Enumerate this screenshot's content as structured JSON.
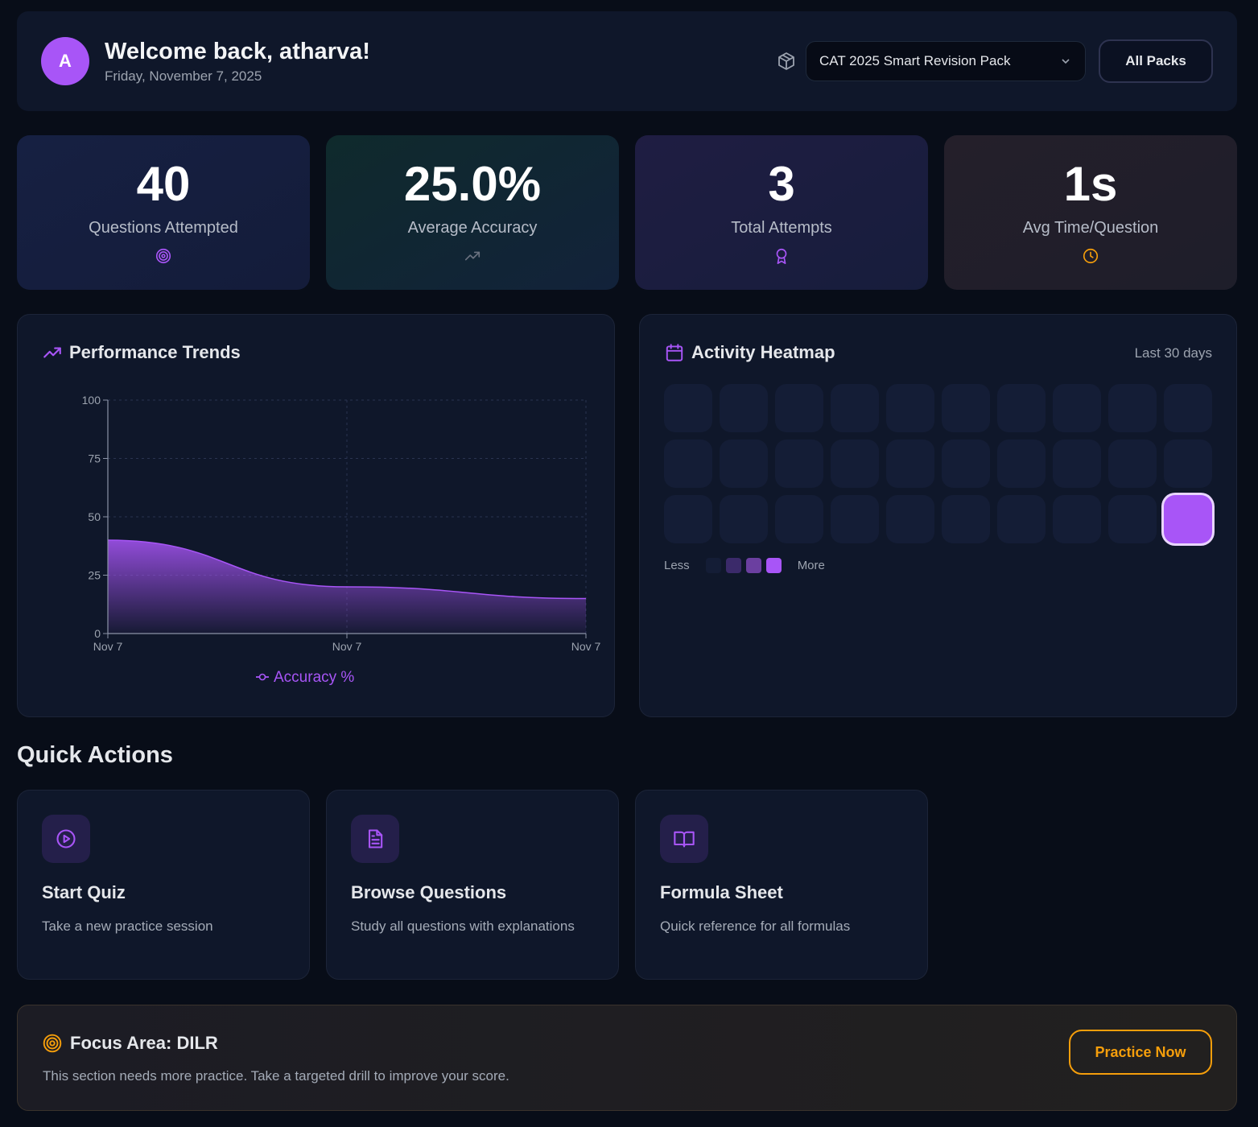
{
  "header": {
    "avatar_initial": "A",
    "welcome": "Welcome back, atharva!",
    "date": "Friday, November 7, 2025",
    "pack_selected": "CAT 2025 Smart Revision Pack",
    "all_packs_label": "All Packs"
  },
  "stats": [
    {
      "value": "40",
      "label": "Questions Attempted",
      "icon": "target-icon",
      "color": "#a855f7"
    },
    {
      "value": "25.0%",
      "label": "Average Accuracy",
      "icon": "trending-up-icon",
      "color": "#6b7280"
    },
    {
      "value": "3",
      "label": "Total Attempts",
      "icon": "award-icon",
      "color": "#a855f7"
    },
    {
      "value": "1s",
      "label": "Avg Time/Question",
      "icon": "clock-icon",
      "color": "#f59e0b"
    }
  ],
  "performance": {
    "title": "Performance Trends",
    "legend_label": "Accuracy %"
  },
  "chart_data": {
    "type": "area",
    "title": "Performance Trends",
    "categories": [
      "Nov 7",
      "Nov 7",
      "Nov 7"
    ],
    "x_ticks": [
      "Nov 7",
      "Nov 7",
      "Nov 7"
    ],
    "y_ticks": [
      0,
      25,
      50,
      75,
      100
    ],
    "ylim": [
      0,
      100
    ],
    "series": [
      {
        "name": "Accuracy %",
        "values": [
          40,
          20,
          15
        ]
      }
    ],
    "grid": true,
    "color": "#a855f7"
  },
  "heatmap": {
    "title": "Activity Heatmap",
    "range_label": "Last 30 days",
    "levels": [
      0,
      0,
      0,
      0,
      0,
      0,
      0,
      0,
      0,
      0,
      0,
      0,
      0,
      0,
      0,
      0,
      0,
      0,
      0,
      0,
      0,
      0,
      0,
      0,
      0,
      0,
      0,
      0,
      0,
      4
    ],
    "legend_less": "Less",
    "legend_more": "More",
    "legend_colors": [
      "#141d36",
      "#3b2a6a",
      "#6b3fa0",
      "#8b5cf6",
      "#a855f7"
    ]
  },
  "quick_actions": {
    "title": "Quick Actions",
    "items": [
      {
        "title": "Start Quiz",
        "desc": "Take a new practice session",
        "icon": "play-circle-icon"
      },
      {
        "title": "Browse Questions",
        "desc": "Study all questions with explanations",
        "icon": "file-text-icon"
      },
      {
        "title": "Formula Sheet",
        "desc": "Quick reference for all formulas",
        "icon": "book-open-icon"
      }
    ]
  },
  "focus": {
    "title": "Focus Area: DILR",
    "desc": "This section needs more practice. Take a targeted drill to improve your score.",
    "button": "Practice Now",
    "accent": "#f59e0b"
  }
}
